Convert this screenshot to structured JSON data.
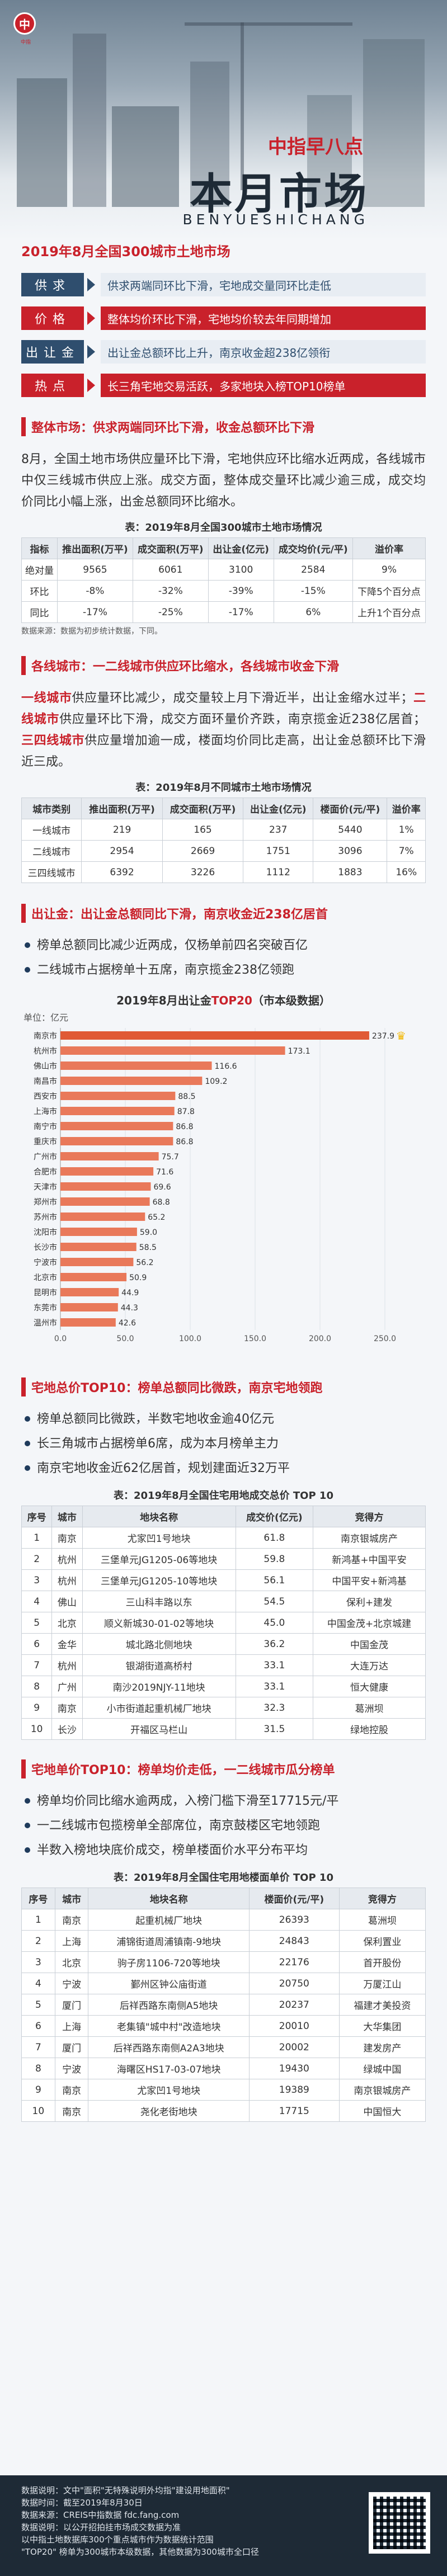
{
  "header": {
    "logo_glyph": "中",
    "logo_sub": "中指",
    "tag": "中指早八点",
    "title": "本月市场",
    "pinyin": "BENYUESHICHANG"
  },
  "summary": {
    "title": "2019年8月全国300城市土地市场",
    "rows": [
      {
        "label": "供求",
        "value": "供求两端同环比下滑，宅地成交量同环比走低",
        "red": false
      },
      {
        "label": "价格",
        "value": "整体均价环比下滑，宅地均价较去年同期增加",
        "red": true
      },
      {
        "label": "出让金",
        "value": "出让金总额环比上升，南京收金超238亿领衔",
        "red": false
      },
      {
        "label": "热点",
        "value": "长三角宅地交易活跃，多家地块入榜TOP10榜单",
        "red": true
      }
    ]
  },
  "sec1": {
    "heading": "整体市场：供求两端同环比下滑，收金总额环比下滑",
    "paragraph": "8月，全国土地市场供应量环比下滑，宅地供应环比缩水近两成，各线城市中仅三线城市供应上涨。成交方面，整体成交量环比减少逾三成，成交均价同比小幅上涨，出金总额同环比缩水。",
    "table_title": "表：2019年8月全国300城市土地市场情况",
    "headers": [
      "指标",
      "推出面积(万平)",
      "成交面积(万平)",
      "出让金(亿元)",
      "成交均价(元/平)",
      "溢价率"
    ],
    "rows": [
      [
        "绝对量",
        "9565",
        "6061",
        "3100",
        "2584",
        "9%"
      ],
      [
        "环比",
        "-8%",
        "-32%",
        "-39%",
        "-15%",
        "下降5个百分点"
      ],
      [
        "同比",
        "-17%",
        "-25%",
        "-17%",
        "6%",
        "上升1个百分点"
      ]
    ],
    "note": "数据来源：数据为初步统计数据，下同。"
  },
  "sec2": {
    "heading": "各线城市：一二线城市供应环比缩水，各线城市收金下滑",
    "p1": "一线城市",
    "p2": "供应量环比减少，成交量较上月下滑近半，出让金缩水过半；",
    "p3": "二线城市",
    "p4": "供应量环比下滑，成交方面环量价齐跌，南京揽金近238亿居首；",
    "p5": "三四线城市",
    "p6": "供应量增加逾一成，楼面均价同比走高，出让金总额环比下滑近三成。",
    "table_title": "表：2019年8月不同城市土地市场情况",
    "headers": [
      "城市类别",
      "推出面积(万平)",
      "成交面积(万平)",
      "出让金(亿元)",
      "楼面价(元/平)",
      "溢价率"
    ],
    "rows": [
      [
        "一线城市",
        "219",
        "165",
        "237",
        "5440",
        "1%"
      ],
      [
        "二线城市",
        "2954",
        "2669",
        "1751",
        "3096",
        "7%"
      ],
      [
        "三四线城市",
        "6392",
        "3226",
        "1112",
        "1883",
        "16%"
      ]
    ]
  },
  "sec3": {
    "heading": "出让金：出让金总额同比下滑，南京收金近238亿居首",
    "bullets": [
      "榜单总额同比减少近两成，仅杨单前四名突破百亿",
      "二线城市占据榜单十五席，南京揽金238亿领跑"
    ],
    "chart_title_a": "2019年8月出让金",
    "chart_title_b": "TOP20",
    "chart_title_c": "（市本级数据）",
    "unit": "单位：亿元"
  },
  "chart_data": {
    "type": "bar",
    "orientation": "horizontal",
    "title": "2019年8月出让金TOP20（市本级数据）",
    "unit": "单位：亿元",
    "categories": [
      "南京市",
      "杭州市",
      "佛山市",
      "南昌市",
      "西安市",
      "上海市",
      "南宁市",
      "重庆市",
      "广州市",
      "合肥市",
      "天津市",
      "郑州市",
      "苏州市",
      "沈阳市",
      "长沙市",
      "宁波市",
      "北京市",
      "昆明市",
      "东莞市",
      "温州市"
    ],
    "values": [
      237.9,
      173.1,
      116.6,
      109.2,
      88.5,
      87.8,
      86.8,
      86.8,
      75.7,
      71.6,
      69.6,
      68.8,
      65.2,
      59.0,
      58.5,
      56.2,
      50.9,
      44.9,
      44.3,
      42.6
    ],
    "xlim": [
      0,
      250
    ],
    "xticks": [
      "0.0",
      "50.0",
      "100.0",
      "150.0",
      "200.0",
      "250.0"
    ],
    "color": "#e9795a",
    "top_color": "#e05a35"
  },
  "sec4": {
    "heading": "宅地总价TOP10：榜单总额同比微跌，南京宅地领跑",
    "bullets": [
      "榜单总额同比微跌，半数宅地收金逾40亿元",
      "长三角城市占据榜单6席，成为本月榜单主力",
      "南京宅地收金近62亿居首，规划建面近32万平"
    ],
    "table_title": "表：2019年8月全国住宅用地成交总价 TOP 10",
    "headers": [
      "序号",
      "城市",
      "地块名称",
      "成交价(亿元)",
      "竞得方"
    ],
    "rows": [
      [
        "1",
        "南京",
        "尤家凹1号地块",
        "61.8",
        "南京银城房产"
      ],
      [
        "2",
        "杭州",
        "三堡单元JG1205-06等地块",
        "59.8",
        "新鸿基+中国平安"
      ],
      [
        "3",
        "杭州",
        "三堡单元JG1205-10等地块",
        "56.1",
        "中国平安+新鸿基"
      ],
      [
        "4",
        "佛山",
        "三山科丰路以东",
        "54.5",
        "保利+建发"
      ],
      [
        "5",
        "北京",
        "顺义新城30-01-02等地块",
        "45.0",
        "中国金茂+北京城建"
      ],
      [
        "6",
        "金华",
        "城北路北侧地块",
        "36.2",
        "中国金茂"
      ],
      [
        "7",
        "杭州",
        "银湖街道高桥村",
        "33.1",
        "大连万达"
      ],
      [
        "8",
        "广州",
        "南沙2019NJY-11地块",
        "33.1",
        "恒大健康"
      ],
      [
        "9",
        "南京",
        "小市街道起重机械厂地块",
        "32.3",
        "葛洲坝"
      ],
      [
        "10",
        "长沙",
        "开福区马栏山",
        "31.5",
        "绿地控股"
      ]
    ]
  },
  "sec5": {
    "heading": "宅地单价TOP10：榜单均价走低，一二线城市瓜分榜单",
    "bullets": [
      "榜单均价同比缩水逾两成，入榜门槛下滑至17715元/平",
      "一二线城市包揽榜单全部席位，南京鼓楼区宅地领跑",
      "半数入榜地块底价成交，榜单楼面价水平分布平均"
    ],
    "table_title": "表：2019年8月全国住宅用地楼面单价 TOP 10",
    "headers": [
      "序号",
      "城市",
      "地块名称",
      "楼面价(元/平)",
      "竞得方"
    ],
    "rows": [
      [
        "1",
        "南京",
        "起重机械厂地块",
        "26393",
        "葛洲坝"
      ],
      [
        "2",
        "上海",
        "浦锦街道周浦镇南-9地块",
        "24843",
        "保利置业"
      ],
      [
        "3",
        "北京",
        "驹子房1106-720等地块",
        "22176",
        "首开股份"
      ],
      [
        "4",
        "宁波",
        "鄞州区钟公庙街道",
        "20750",
        "万厦江山"
      ],
      [
        "5",
        "厦门",
        "后祥西路东南侧A5地块",
        "20237",
        "福建才美投资"
      ],
      [
        "6",
        "上海",
        "老集镇\"城中村\"改造地块",
        "20010",
        "大华集团"
      ],
      [
        "7",
        "厦门",
        "后祥西路东南侧A2A3地块",
        "20002",
        "建发房产"
      ],
      [
        "8",
        "宁波",
        "海曙区HS17-03-07地块",
        "19430",
        "绿城中国"
      ],
      [
        "9",
        "南京",
        "尤家凹1号地块",
        "19389",
        "南京银城房产"
      ],
      [
        "10",
        "南京",
        "尧化老街地块",
        "17715",
        "中国恒大"
      ]
    ]
  },
  "footer": {
    "lines": [
      "数据说明：文中\"面积\"无特殊说明外均指\"建设用地面积\"",
      "数据时间：截至2019年8月30日",
      "数据来源：CREIS中指数据 fdc.fang.com",
      "数据说明：以公开招拍挂市场成交数据为准",
      "以中指土地数据库300个重点城市作为数据统计范围",
      "\"TOP20\" 榜单为300城市本级数据，其他数据为300城市全口径"
    ]
  }
}
